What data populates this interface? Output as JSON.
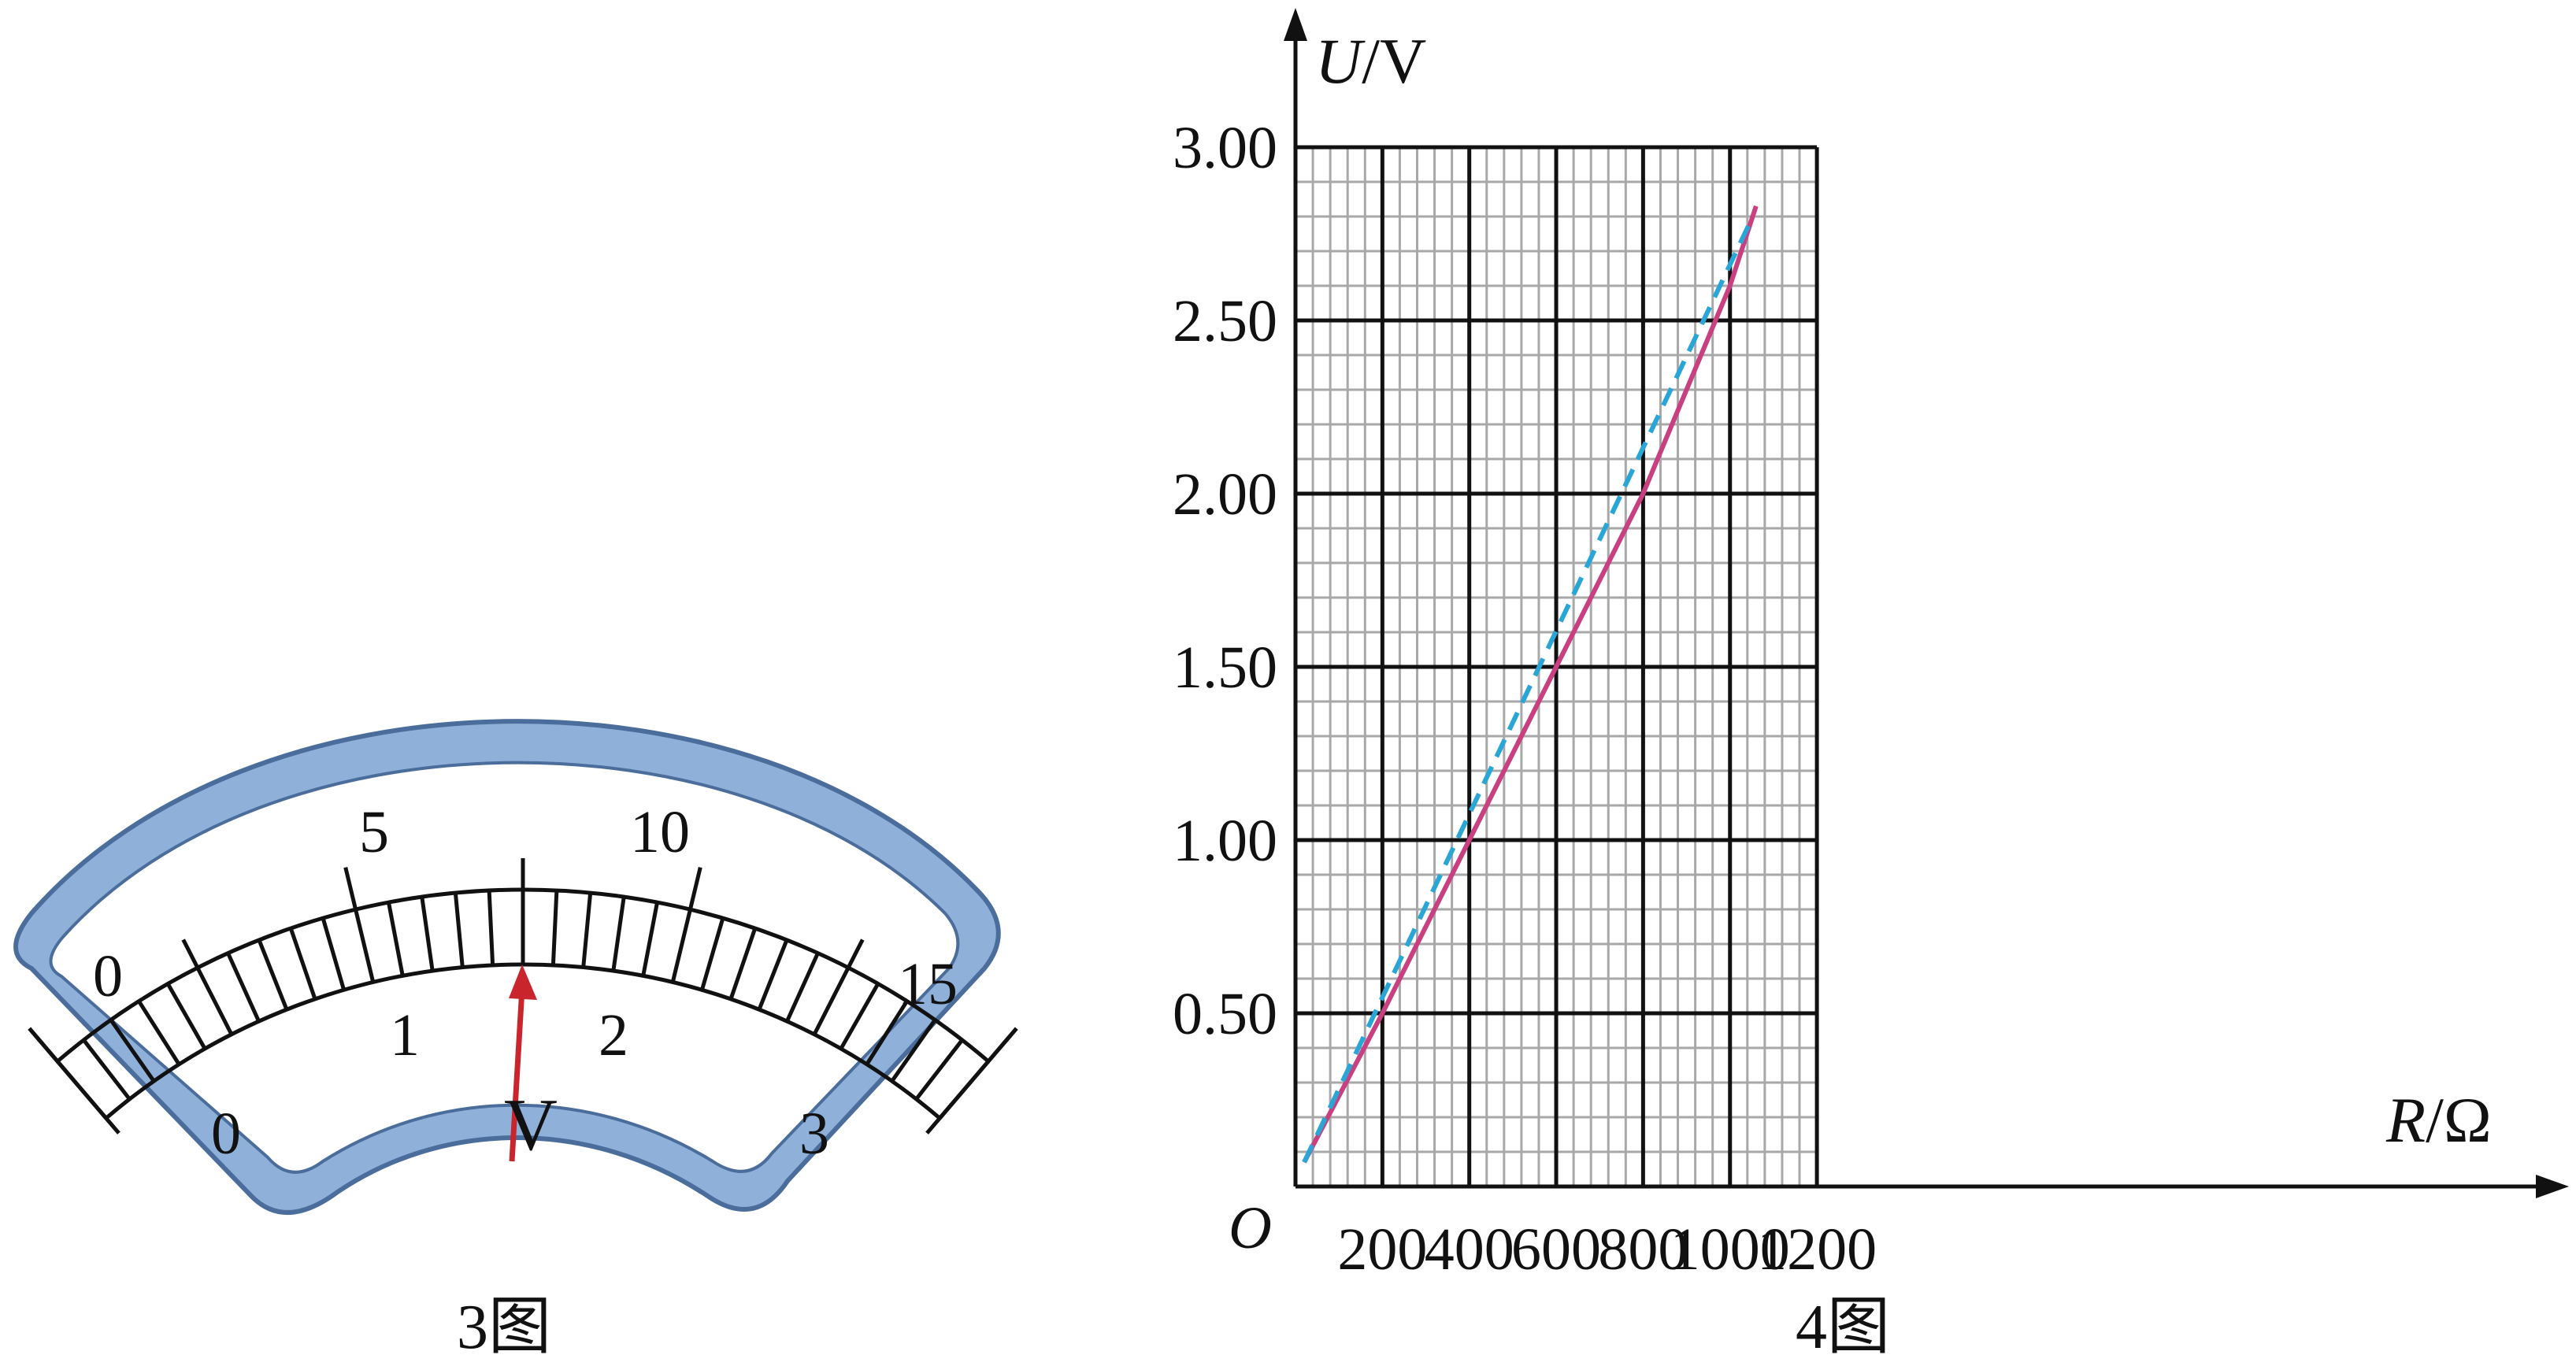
{
  "figure3": {
    "caption": "3图",
    "meter_symbol": "V",
    "upper_scale_labels": [
      "0",
      "5",
      "10",
      "15"
    ],
    "lower_scale_labels": [
      "0",
      "1",
      "2",
      "3"
    ],
    "needle_reading_0_to_3_scale": 1.5,
    "colors": {
      "frame": "#8fb1d9",
      "frame_edge": "#4b6d9c",
      "needle": "#c9252c"
    }
  },
  "figure4": {
    "caption": "4图",
    "origin_label": "O",
    "chart_data": {
      "type": "line",
      "xlabel": "R/Ω",
      "ylabel": "U/V",
      "xlim": [
        0,
        1200
      ],
      "ylim": [
        0,
        3.0
      ],
      "x_ticks": [
        "200",
        "400",
        "600",
        "800",
        "1000",
        "1200"
      ],
      "y_ticks": [
        "0.50",
        "1.00",
        "1.50",
        "2.00",
        "2.50",
        "3.00"
      ],
      "grid": true,
      "series": [
        {
          "style": "solid",
          "color": "#c8407f",
          "points": [
            [
              20,
              0.07
            ],
            [
              200,
              0.5
            ],
            [
              400,
              1.0
            ],
            [
              600,
              1.5
            ],
            [
              800,
              2.0
            ],
            [
              1000,
              2.6
            ],
            [
              1060,
              2.83
            ]
          ]
        },
        {
          "style": "dashed",
          "color": "#2aa6d6",
          "points": [
            [
              20,
              0.07
            ],
            [
              1045,
              2.78
            ]
          ]
        }
      ]
    }
  }
}
